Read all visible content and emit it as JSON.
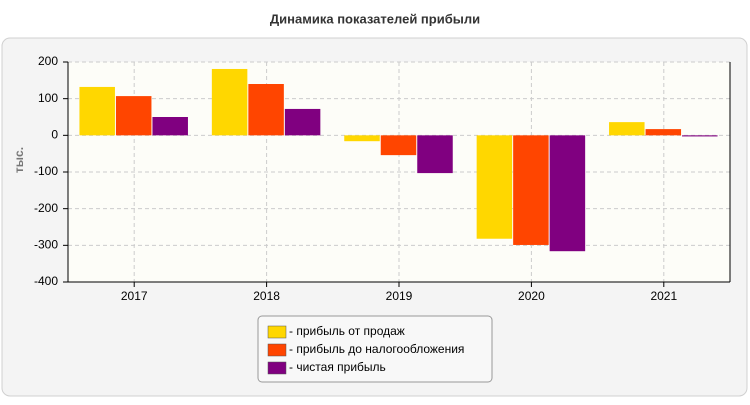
{
  "chart_data": {
    "type": "bar",
    "title": "Динамика показателей прибыли",
    "y_label": "тыс.",
    "categories": [
      "2017",
      "2018",
      "2019",
      "2020",
      "2021"
    ],
    "series": [
      {
        "name": "- прибыль от продаж",
        "color": "#ffd700",
        "values": [
          132,
          181,
          -16,
          -282,
          36
        ]
      },
      {
        "name": "- прибыль до налогообложения",
        "color": "#ff4500",
        "values": [
          107,
          140,
          -54,
          -299,
          17
        ]
      },
      {
        "name": "- чистая прибыль",
        "color": "#800080",
        "values": [
          50,
          72,
          -103,
          -316,
          -3
        ]
      }
    ],
    "ylim": [
      -400,
      200
    ],
    "yticks": [
      -400,
      -300,
      -200,
      -100,
      0,
      100,
      200
    ],
    "grid": true,
    "legend": "bottom"
  }
}
